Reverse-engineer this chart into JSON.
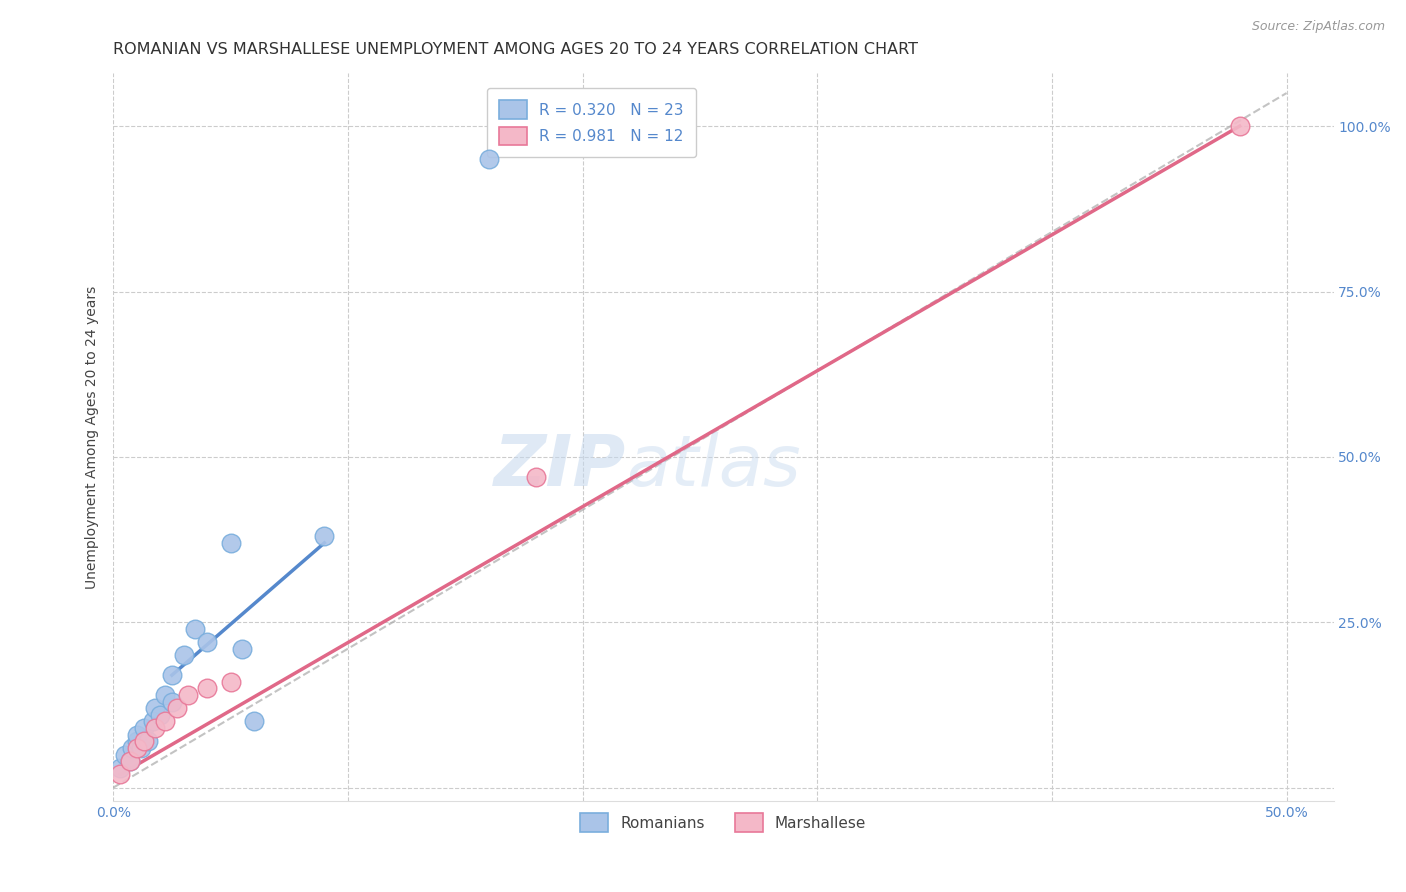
{
  "title": "ROMANIAN VS MARSHALLESE UNEMPLOYMENT AMONG AGES 20 TO 24 YEARS CORRELATION CHART",
  "source": "Source: ZipAtlas.com",
  "ylabel": "Unemployment Among Ages 20 to 24 years",
  "xlim": [
    0.0,
    0.52
  ],
  "ylim": [
    -0.02,
    1.08
  ],
  "x_ticks": [
    0.0,
    0.1,
    0.2,
    0.3,
    0.4,
    0.5
  ],
  "x_tick_labels": [
    "0.0%",
    "",
    "",
    "",
    "",
    "50.0%"
  ],
  "y_ticks": [
    0.0,
    0.25,
    0.5,
    0.75,
    1.0
  ],
  "y_tick_labels": [
    "",
    "25.0%",
    "50.0%",
    "75.0%",
    "100.0%"
  ],
  "background_color": "#ffffff",
  "grid_color": "#cccccc",
  "romanians_color": "#aac4e8",
  "marshallese_color": "#f4b8c8",
  "romanian_edge_color": "#7aaedd",
  "marshallese_edge_color": "#e87898",
  "romanian_line_color": "#5588cc",
  "marshallese_line_color": "#e06888",
  "ref_line_color": "#aaaaaa",
  "r_romanian": 0.32,
  "n_romanian": 23,
  "r_marshallese": 0.981,
  "n_marshallese": 12,
  "watermark_zip": "ZIP",
  "watermark_atlas": "atlas",
  "romanians_x": [
    0.003,
    0.005,
    0.007,
    0.008,
    0.01,
    0.01,
    0.012,
    0.013,
    0.015,
    0.017,
    0.018,
    0.02,
    0.022,
    0.025,
    0.025,
    0.03,
    0.035,
    0.04,
    0.05,
    0.055,
    0.06,
    0.09,
    0.16
  ],
  "romanians_y": [
    0.03,
    0.05,
    0.04,
    0.06,
    0.07,
    0.08,
    0.06,
    0.09,
    0.07,
    0.1,
    0.12,
    0.11,
    0.14,
    0.13,
    0.17,
    0.2,
    0.24,
    0.22,
    0.37,
    0.21,
    0.1,
    0.38,
    0.95
  ],
  "marshallese_x": [
    0.003,
    0.007,
    0.01,
    0.013,
    0.018,
    0.022,
    0.027,
    0.032,
    0.04,
    0.05,
    0.18,
    0.48
  ],
  "marshallese_y": [
    0.02,
    0.04,
    0.06,
    0.07,
    0.09,
    0.1,
    0.12,
    0.14,
    0.15,
    0.16,
    0.47,
    1.0
  ],
  "romanian_trend_x": [
    0.025,
    0.09
  ],
  "romanian_trend_y": [
    0.17,
    0.37
  ],
  "marshallese_trend_x": [
    0.003,
    0.48
  ],
  "marshallese_trend_y": [
    0.02,
    1.0
  ],
  "ref_line_x": [
    0.0,
    0.5
  ],
  "ref_line_y": [
    0.0,
    1.05
  ],
  "title_fontsize": 11.5,
  "axis_label_fontsize": 10,
  "tick_fontsize": 10,
  "legend_fontsize": 11
}
